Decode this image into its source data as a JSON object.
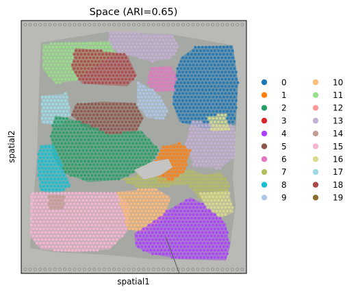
{
  "chart_data": {
    "type": "scatter",
    "title": "Space (ARI=0.65)",
    "xlabel": "spatial1",
    "ylabel": "spatial2",
    "ticks": "none",
    "background": "H&E tissue image",
    "legend_placement": "right, outside plot, two columns",
    "legend": [
      {
        "label": "0",
        "color": "#1f77b4"
      },
      {
        "label": "1",
        "color": "#ff7f0e"
      },
      {
        "label": "2",
        "color": "#279e68"
      },
      {
        "label": "3",
        "color": "#d62728"
      },
      {
        "label": "4",
        "color": "#aa40fc"
      },
      {
        "label": "5",
        "color": "#8c564b"
      },
      {
        "label": "6",
        "color": "#e377c2"
      },
      {
        "label": "7",
        "color": "#b5bd61"
      },
      {
        "label": "8",
        "color": "#17becf"
      },
      {
        "label": "9",
        "color": "#aec7e8"
      },
      {
        "label": "10",
        "color": "#ffbb78"
      },
      {
        "label": "11",
        "color": "#98df8a"
      },
      {
        "label": "12",
        "color": "#ff9896"
      },
      {
        "label": "13",
        "color": "#c5b0d5"
      },
      {
        "label": "14",
        "color": "#c49c94"
      },
      {
        "label": "15",
        "color": "#f7b6d2"
      },
      {
        "label": "16",
        "color": "#dbdb8d"
      },
      {
        "label": "17",
        "color": "#9edae5"
      },
      {
        "label": "18",
        "color": "#ad494a"
      },
      {
        "label": "19",
        "color": "#8c6d31"
      }
    ]
  }
}
